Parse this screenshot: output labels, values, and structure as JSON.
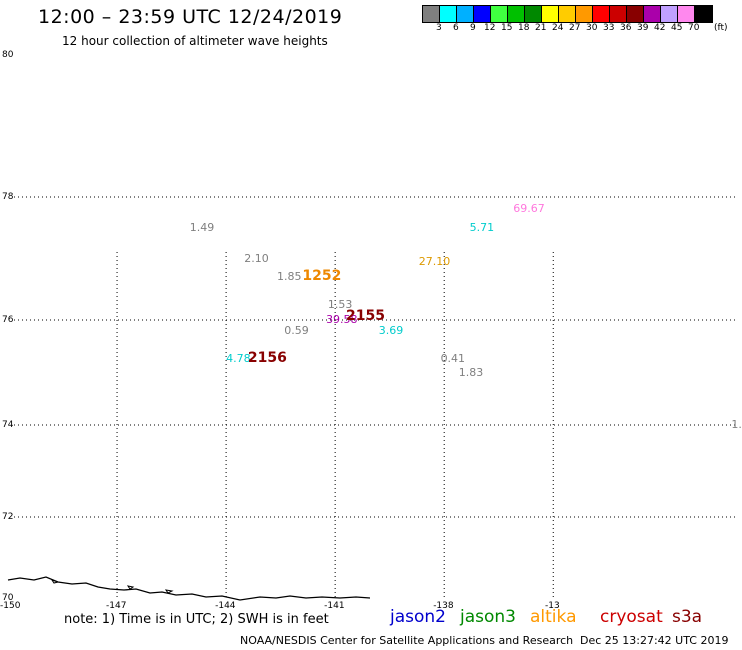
{
  "header": {
    "title": "12:00 – 23:59 UTC 12/24/2019",
    "subtitle": "12 hour collection of altimeter wave heights"
  },
  "colorbar": {
    "unit": "(ft)",
    "swatches": [
      {
        "color": "#7f7f7f",
        "label": "3"
      },
      {
        "color": "#00ffff",
        "label": "6"
      },
      {
        "color": "#00b0ff",
        "label": "9"
      },
      {
        "color": "#0000ff",
        "label": "12"
      },
      {
        "color": "#40ff40",
        "label": "15"
      },
      {
        "color": "#00c000",
        "label": "18"
      },
      {
        "color": "#008800",
        "label": "21"
      },
      {
        "color": "#ffff00",
        "label": "24"
      },
      {
        "color": "#ffcc00",
        "label": "27"
      },
      {
        "color": "#ff9900",
        "label": "30"
      },
      {
        "color": "#ff0000",
        "label": "33"
      },
      {
        "color": "#cc0000",
        "label": "36"
      },
      {
        "color": "#880000",
        "label": "39"
      },
      {
        "color": "#aa00aa",
        "label": "42"
      },
      {
        "color": "#c0a0ff",
        "label": "45"
      },
      {
        "color": "#ff88ee",
        "label": "70"
      },
      {
        "color": "#000000",
        "label": ""
      }
    ]
  },
  "map": {
    "lon_range": [
      -150,
      -130
    ],
    "lat_range": [
      70,
      80
    ],
    "lat_ticks": [
      {
        "value": 80,
        "label": "80"
      },
      {
        "value": 78,
        "label": "78"
      },
      {
        "value": 76,
        "label": "76"
      },
      {
        "value": 74,
        "label": "74"
      },
      {
        "value": 72,
        "label": "72"
      },
      {
        "value": 70,
        "label": "70"
      }
    ],
    "lon_ticks": [
      {
        "value": -150,
        "label": "-150"
      },
      {
        "value": -147,
        "label": "-147"
      },
      {
        "value": -144,
        "label": "-144"
      },
      {
        "value": -141,
        "label": "-141"
      },
      {
        "value": -138,
        "label": "-138"
      },
      {
        "value": -135,
        "label": "-13"
      }
    ],
    "wave_heights": [
      {
        "text": "1.49",
        "lon": -145.0,
        "lat": 77.5,
        "color": "#7f7f7f"
      },
      {
        "text": "2.10",
        "lon": -143.5,
        "lat": 77.0,
        "color": "#7f7f7f"
      },
      {
        "text": "1.85",
        "lon": -142.6,
        "lat": 76.7,
        "color": "#7f7f7f"
      },
      {
        "text": "1.53",
        "lon": -141.2,
        "lat": 76.25,
        "color": "#7f7f7f"
      },
      {
        "text": "39.58",
        "lon": -141.25,
        "lat": 76.0,
        "color": "#aa00aa"
      },
      {
        "text": "0.59",
        "lon": -142.4,
        "lat": 75.8,
        "color": "#7f7f7f"
      },
      {
        "text": "3.69",
        "lon": -139.8,
        "lat": 75.8,
        "color": "#00cccc"
      },
      {
        "text": "4.78",
        "lon": -144.0,
        "lat": 75.25,
        "color": "#00cccc"
      },
      {
        "text": "27.10",
        "lon": -138.7,
        "lat": 76.95,
        "color": "#dd9900"
      },
      {
        "text": "5.71",
        "lon": -137.3,
        "lat": 77.5,
        "color": "#00cccc"
      },
      {
        "text": "69.67",
        "lon": -136.1,
        "lat": 77.8,
        "color": "#ff77dd"
      },
      {
        "text": "0.41",
        "lon": -138.1,
        "lat": 75.25,
        "color": "#7f7f7f"
      },
      {
        "text": "1.83",
        "lon": -137.6,
        "lat": 75.0,
        "color": "#7f7f7f"
      },
      {
        "text": "1.",
        "lon": -130.1,
        "lat": 74.0,
        "color": "#7f7f7f"
      }
    ],
    "pass_labels": [
      {
        "text": "1252",
        "lon": -141.9,
        "lat": 76.7,
        "color": "#ee8800"
      },
      {
        "text": "2155",
        "lon": -140.7,
        "lat": 76.05,
        "color": "#880000"
      },
      {
        "text": "2156",
        "lon": -143.4,
        "lat": 75.25,
        "color": "#880000"
      }
    ]
  },
  "footer": {
    "note": "note: 1) Time is in UTC; 2) SWH is in feet",
    "satellites": [
      {
        "name": "jason2",
        "color": "#0000cc"
      },
      {
        "name": "jason3",
        "color": "#008800"
      },
      {
        "name": "altika",
        "color": "#ff9900"
      },
      {
        "name": "cryosat",
        "color": "#cc0000"
      },
      {
        "name": "s3a",
        "color": "#880000"
      }
    ],
    "credit": "NOAA/NESDIS Center for Satellite Applications and Research",
    "timestamp": "Dec 25 13:27:42 UTC 2019"
  }
}
